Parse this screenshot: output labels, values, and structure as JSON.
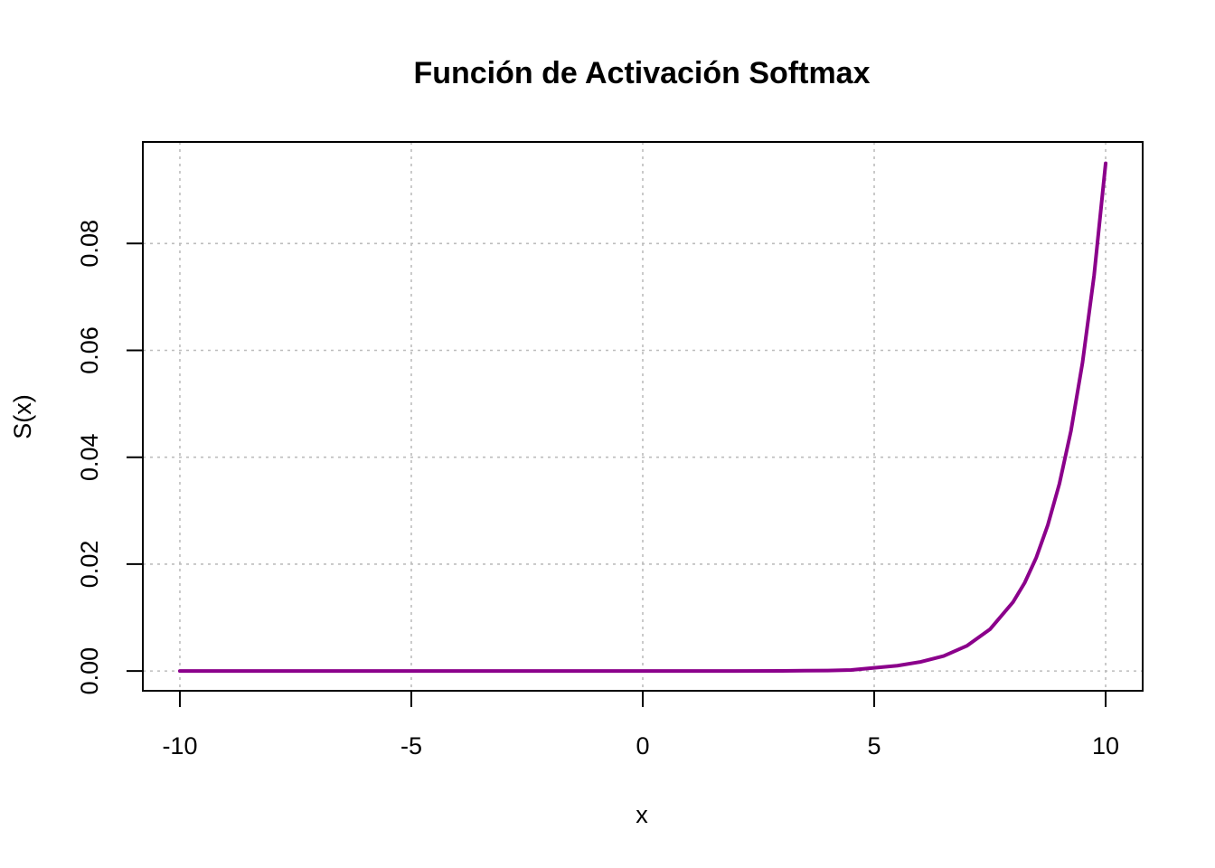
{
  "chart_data": {
    "type": "line",
    "title": "Función de Activación Softmax",
    "xlabel": "x",
    "ylabel": "S(x)",
    "xlim": [
      -10.8,
      10.8
    ],
    "ylim": [
      -0.0037,
      0.099
    ],
    "x_ticks": [
      -10,
      -5,
      0,
      5,
      10
    ],
    "x_tick_labels": [
      "-10",
      "-5",
      "0",
      "5",
      "10"
    ],
    "y_ticks": [
      0.0,
      0.02,
      0.04,
      0.06,
      0.08
    ],
    "y_tick_labels": [
      "0.00",
      "0.02",
      "0.04",
      "0.06",
      "0.08"
    ],
    "grid": true,
    "series": [
      {
        "color": "#8b008b",
        "x": [
          -10,
          -9,
          -8,
          -7,
          -6,
          -5,
          -4,
          -3,
          -2,
          -1,
          0,
          1,
          2,
          3,
          4,
          4.5,
          5,
          5.5,
          6,
          6.5,
          7,
          7.5,
          8,
          8.25,
          8.5,
          8.75,
          9,
          9.25,
          9.5,
          9.75,
          10
        ],
        "y": [
          0,
          0,
          0,
          0,
          0,
          0,
          0,
          0,
          0,
          0,
          0,
          0,
          1e-05,
          3e-05,
          8e-05,
          0.0002,
          0.0006,
          0.001,
          0.0017,
          0.0028,
          0.0047,
          0.0078,
          0.0129,
          0.0165,
          0.0212,
          0.0273,
          0.035,
          0.0449,
          0.0577,
          0.074,
          0.095
        ]
      }
    ]
  }
}
